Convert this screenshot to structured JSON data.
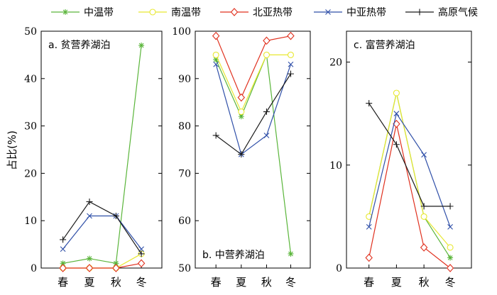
{
  "chart_data": {
    "type": "line",
    "ylabel": "占比(%)",
    "categories": [
      "春",
      "夏",
      "秋",
      "冬"
    ],
    "series_styles": [
      {
        "name": "中温带",
        "color": "#5ab53a",
        "marker": "asterisk"
      },
      {
        "name": "南温带",
        "color": "#e8e832",
        "marker": "circle"
      },
      {
        "name": "北亚热带",
        "color": "#e0301e",
        "marker": "diamond"
      },
      {
        "name": "中亚热带",
        "color": "#2f4fa8",
        "marker": "x"
      },
      {
        "name": "高原气候",
        "color": "#1a1a1a",
        "marker": "plus"
      }
    ],
    "panels": [
      {
        "title": "a. 贫营养湖泊",
        "title_position": "top-left",
        "ylim": [
          0,
          50
        ],
        "yticks": [
          0,
          10,
          20,
          30,
          40,
          50
        ],
        "series": [
          {
            "name": "中温带",
            "values": [
              1,
              2,
              1,
              47
            ]
          },
          {
            "name": "南温带",
            "values": [
              0,
              0,
              0,
              3
            ]
          },
          {
            "name": "北亚热带",
            "values": [
              0,
              0,
              0,
              1
            ]
          },
          {
            "name": "中亚热带",
            "values": [
              4,
              11,
              11,
              4
            ]
          },
          {
            "name": "高原气候",
            "values": [
              6,
              14,
              11,
              3
            ]
          }
        ]
      },
      {
        "title": "b. 中营养湖泊",
        "title_position": "bottom-left",
        "ylim": [
          50,
          100
        ],
        "yticks": [
          50,
          60,
          70,
          80,
          90,
          100
        ],
        "series": [
          {
            "name": "中温带",
            "values": [
              94,
              82,
              95,
              53
            ]
          },
          {
            "name": "南温带",
            "values": [
              95,
              83,
              95,
              95
            ]
          },
          {
            "name": "北亚热带",
            "values": [
              99,
              86,
              98,
              99
            ]
          },
          {
            "name": "中亚热带",
            "values": [
              93,
              74,
              78,
              93
            ]
          },
          {
            "name": "高原气候",
            "values": [
              78,
              74,
              83,
              91
            ]
          }
        ]
      },
      {
        "title": "c. 富营养湖泊",
        "title_position": "top-left",
        "ylim": [
          0,
          23
        ],
        "yticks": [
          0,
          10,
          20
        ],
        "series": [
          {
            "name": "中温带",
            "values": [
              5,
              17,
              5,
              1
            ]
          },
          {
            "name": "南温带",
            "values": [
              5,
              17,
              5,
              2
            ]
          },
          {
            "name": "北亚热带",
            "values": [
              1,
              14,
              2,
              0
            ]
          },
          {
            "name": "中亚热带",
            "values": [
              4,
              15,
              11,
              4
            ]
          },
          {
            "name": "高原气候",
            "values": [
              16,
              12,
              6,
              6
            ]
          }
        ]
      }
    ]
  }
}
